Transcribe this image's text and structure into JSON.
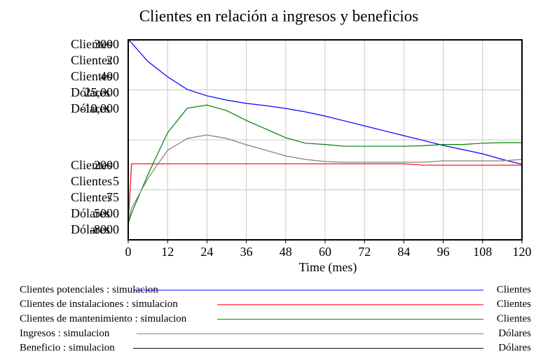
{
  "chart_data": {
    "type": "line",
    "title": "Clientes en relación a ingresos y beneficios",
    "x_label": "Time (mes)",
    "x": [
      0,
      1,
      6,
      12,
      18,
      24,
      30,
      36,
      42,
      48,
      54,
      60,
      66,
      72,
      78,
      84,
      90,
      96,
      102,
      108,
      114,
      120
    ],
    "xlim": [
      0,
      120
    ],
    "xticks": [
      0,
      12,
      24,
      36,
      48,
      60,
      72,
      84,
      96,
      108,
      120
    ],
    "grid": true,
    "series": [
      {
        "name": "Clientes potenciales : simulacion",
        "color": "#0000ff",
        "unit": "Clientes",
        "ylim": [
          2000,
          3000
        ],
        "values": [
          3000,
          2985,
          2892,
          2815,
          2752,
          2720,
          2699,
          2682,
          2671,
          2657,
          2640,
          2619,
          2594,
          2570,
          2545,
          2521,
          2497,
          2472,
          2451,
          2430,
          2402,
          2378
        ]
      },
      {
        "name": "Clientes de instalaciones : simulacion",
        "color": "#ff0000",
        "unit": "Clientes",
        "ylim": [
          5,
          20
        ],
        "values": [
          6.2,
          10.7,
          10.7,
          10.7,
          10.7,
          10.7,
          10.7,
          10.7,
          10.7,
          10.7,
          10.7,
          10.7,
          10.7,
          10.7,
          10.7,
          10.7,
          10.6,
          10.6,
          10.6,
          10.6,
          10.6,
          10.6
        ]
      },
      {
        "name": "Clientes de mantenimiento : simulacion",
        "color": "#008000",
        "unit": "Clientes",
        "ylim": [
          75,
          400
        ],
        "values": [
          101,
          118,
          181,
          249,
          289,
          294,
          285,
          269,
          255,
          241,
          232,
          230,
          227,
          227,
          227,
          227,
          228,
          230,
          230,
          232,
          233,
          233
        ]
      },
      {
        "name": "Ingresos : simulacion",
        "color": "#808080",
        "unit": "Dólares",
        "ylim": [
          5000,
          {
            "value": 25000,
            "label": "25,000"
          }
        ],
        "values": [
          6600,
          8150,
          11150,
          13950,
          15140,
          15490,
          15140,
          14510,
          13950,
          13390,
          13040,
          12830,
          12760,
          12760,
          12760,
          12760,
          12760,
          12900,
          12900,
          12900,
          12900,
          13040
        ]
      },
      {
        "name": "Beneficio : simulacion",
        "color": "#000000",
        "unit": "Dólares",
        "ylim": [
          -8000,
          {
            "value": -10000,
            "label": "-10,000"
          }
        ]
      }
    ]
  }
}
